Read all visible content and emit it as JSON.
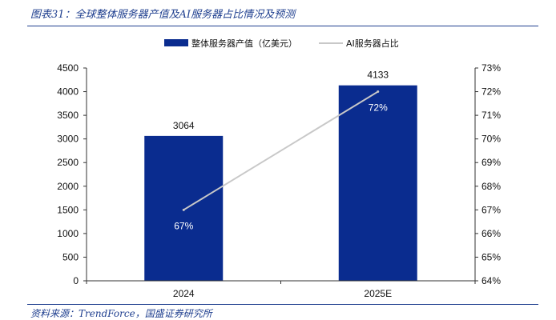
{
  "figure": {
    "title": "图表31：全球整体服务器产值及AI服务器占比情况及预测",
    "source": "资料来源：TrendForce，国盛证券研究所"
  },
  "colors": {
    "bar": "#0a2c8f",
    "line": "#c8c8c8",
    "accent": "#1f3f8f"
  },
  "chart_data": {
    "type": "bar",
    "categories": [
      "2024",
      "2025E"
    ],
    "series": [
      {
        "name": "整体服务器产值（亿美元）",
        "type": "bar",
        "axis": "left",
        "values": [
          3064,
          4133
        ],
        "labels": [
          "3064",
          "4133"
        ]
      },
      {
        "name": "AI服务器占比",
        "type": "line",
        "axis": "right",
        "values": [
          67,
          72
        ],
        "labels": [
          "67%",
          "72%"
        ]
      }
    ],
    "y_left": {
      "min": 0,
      "max": 4500,
      "ticks": [
        "0",
        "500",
        "1000",
        "1500",
        "2000",
        "2500",
        "3000",
        "3500",
        "4000",
        "4500"
      ]
    },
    "y_right": {
      "min": 64,
      "max": 73,
      "ticks": [
        "64%",
        "65%",
        "66%",
        "67%",
        "68%",
        "69%",
        "70%",
        "71%",
        "72%",
        "73%"
      ]
    },
    "legend_position": "top",
    "grid": false
  }
}
